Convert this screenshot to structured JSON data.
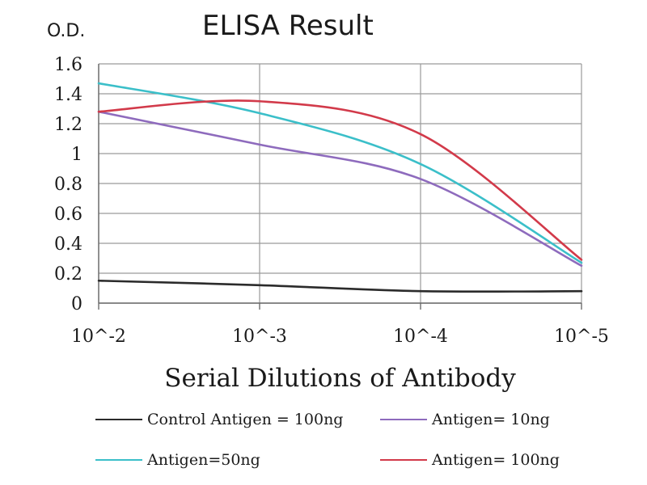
{
  "chart_data": {
    "type": "line",
    "title": "ELISA Result",
    "ylabel": "O.D.",
    "xlabel": "Serial Dilutions of Antibody",
    "x": [
      "10^-2",
      "10^-3",
      "10^-4",
      "10^-5"
    ],
    "ylim": [
      0,
      1.6
    ],
    "yticks": [
      "0",
      "0.2",
      "0.4",
      "0.6",
      "0.8",
      "1",
      "1.2",
      "1.4",
      "1.6"
    ],
    "grid": true,
    "legend_position": "bottom",
    "series": [
      {
        "name": "Control Antigen = 100ng",
        "color": "#2b2b2b",
        "values": [
          0.15,
          0.12,
          0.08,
          0.08
        ]
      },
      {
        "name": "Antigen= 10ng",
        "color": "#8e6bbd",
        "values": [
          1.28,
          1.06,
          0.83,
          0.25
        ]
      },
      {
        "name": "Antigen=50ng",
        "color": "#3bbfc9",
        "values": [
          1.47,
          1.27,
          0.93,
          0.27
        ]
      },
      {
        "name": "Antigen= 100ng",
        "color": "#d23a4a",
        "values": [
          1.28,
          1.35,
          1.13,
          0.29
        ]
      }
    ]
  }
}
